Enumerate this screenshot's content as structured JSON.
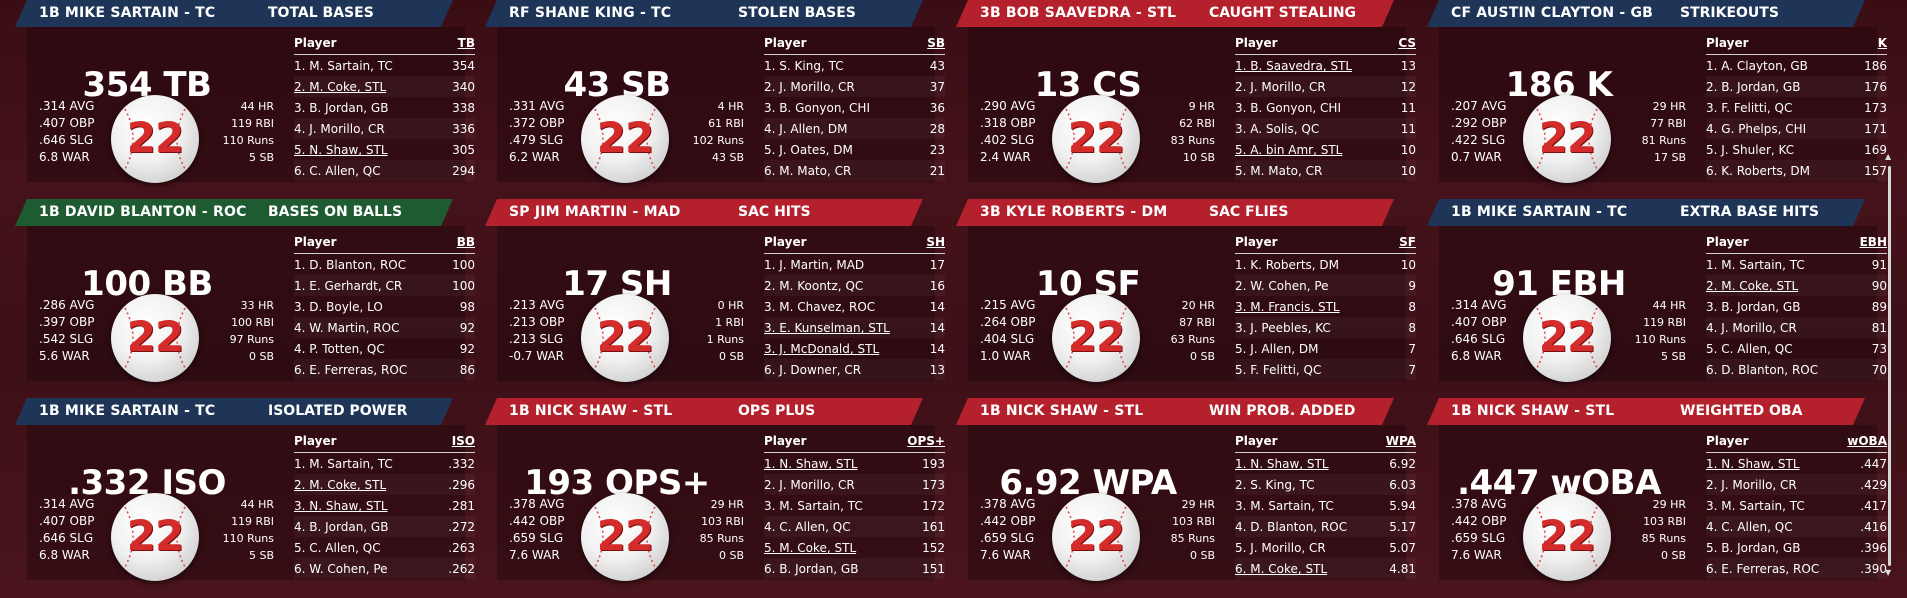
{
  "colors": {
    "navy": "#1e3557",
    "red": "#b4202b",
    "green": "#1e5b31"
  },
  "cards": [
    {
      "header": "1B MIKE SARTAIN - TC",
      "stat": "TOTAL BASES",
      "color": "navy",
      "big": "354 TB",
      "left": [
        ".314 AVG",
        ".407 OBP",
        ".646 SLG",
        "6.8 WAR"
      ],
      "right": [
        "44 HR",
        "119 RBI",
        "110 Runs",
        "5 SB"
      ],
      "number": "22",
      "col": "TB",
      "rows": [
        [
          "1. M. Sartain, TC",
          "354",
          false
        ],
        [
          "2. M. Coke, STL",
          "340",
          true
        ],
        [
          "3. B. Jordan, GB",
          "338",
          false
        ],
        [
          "4. J. Morillo, CR",
          "336",
          false
        ],
        [
          "5. N. Shaw, STL",
          "305",
          true
        ],
        [
          "6. C. Allen, QC",
          "294",
          false
        ]
      ]
    },
    {
      "header": "RF SHANE KING - TC",
      "stat": "STOLEN BASES",
      "color": "navy",
      "big": "43 SB",
      "left": [
        ".331 AVG",
        ".372 OBP",
        ".479 SLG",
        "6.2 WAR"
      ],
      "right": [
        "4 HR",
        "61 RBI",
        "102 Runs",
        "43 SB"
      ],
      "number": "22",
      "col": "SB",
      "rows": [
        [
          "1. S. King, TC",
          "43",
          false
        ],
        [
          "2. J. Morillo, CR",
          "37",
          false
        ],
        [
          "3. B. Gonyon, CHI",
          "36",
          false
        ],
        [
          "4. J. Allen, DM",
          "28",
          false
        ],
        [
          "5. J. Oates, DM",
          "23",
          false
        ],
        [
          "6. M. Mato, CR",
          "21",
          false
        ]
      ]
    },
    {
      "header": "3B BOB SAAVEDRA - STL",
      "stat": "CAUGHT STEALING",
      "color": "red",
      "big": "13 CS",
      "left": [
        ".290 AVG",
        ".318 OBP",
        ".402 SLG",
        "2.4 WAR"
      ],
      "right": [
        "9 HR",
        "62 RBI",
        "83 Runs",
        "10 SB"
      ],
      "number": "22",
      "col": "CS",
      "rows": [
        [
          "1. B. Saavedra, STL",
          "13",
          true
        ],
        [
          "2. J. Morillo, CR",
          "12",
          false
        ],
        [
          "3. B. Gonyon, CHI",
          "11",
          false
        ],
        [
          "3. A. Solis, QC",
          "11",
          false
        ],
        [
          "5. A. bin Amr, STL",
          "10",
          true
        ],
        [
          "5. M. Mato, CR",
          "10",
          false
        ]
      ]
    },
    {
      "header": "CF AUSTIN CLAYTON - GB",
      "stat": "STRIKEOUTS",
      "color": "navy",
      "big": "186 K",
      "left": [
        ".207 AVG",
        ".292 OBP",
        ".422 SLG",
        "0.7 WAR"
      ],
      "right": [
        "29 HR",
        "77 RBI",
        "81 Runs",
        "17 SB"
      ],
      "number": "22",
      "col": "K",
      "rows": [
        [
          "1. A. Clayton, GB",
          "186",
          false
        ],
        [
          "2. B. Jordan, GB",
          "176",
          false
        ],
        [
          "3. F. Felitti, QC",
          "173",
          false
        ],
        [
          "4. G. Phelps, CHI",
          "171",
          false
        ],
        [
          "5. J. Shuler, KC",
          "169",
          false
        ],
        [
          "6. K. Roberts, DM",
          "157",
          false
        ]
      ]
    },
    {
      "header": "1B DAVID BLANTON - ROC",
      "stat": "BASES ON BALLS",
      "color": "green",
      "big": "100 BB",
      "left": [
        ".286 AVG",
        ".397 OBP",
        ".542 SLG",
        "5.6 WAR"
      ],
      "right": [
        "33 HR",
        "100 RBI",
        "97 Runs",
        "0 SB"
      ],
      "number": "22",
      "col": "BB",
      "rows": [
        [
          "1. D. Blanton, ROC",
          "100",
          false
        ],
        [
          "1. E. Gerhardt, CR",
          "100",
          false
        ],
        [
          "3. D. Boyle, LO",
          "98",
          false
        ],
        [
          "4. W. Martin, ROC",
          "92",
          false
        ],
        [
          "4. P. Totten, QC",
          "92",
          false
        ],
        [
          "6. E. Ferreras, ROC",
          "86",
          false
        ]
      ]
    },
    {
      "header": "SP JIM MARTIN - MAD",
      "stat": "SAC HITS",
      "color": "red",
      "big": "17 SH",
      "left": [
        ".213 AVG",
        ".213 OBP",
        ".213 SLG",
        "-0.7 WAR"
      ],
      "right": [
        "0 HR",
        "1 RBI",
        "1 Runs",
        "0 SB"
      ],
      "number": "22",
      "col": "SH",
      "rows": [
        [
          "1. J. Martin, MAD",
          "17",
          false
        ],
        [
          "2. M. Koontz, QC",
          "16",
          false
        ],
        [
          "3. M. Chavez, ROC",
          "14",
          false
        ],
        [
          "3. E. Kunselman, STL",
          "14",
          true
        ],
        [
          "3. J. McDonald, STL",
          "14",
          true
        ],
        [
          "6. J. Downer, CR",
          "13",
          false
        ]
      ]
    },
    {
      "header": "3B KYLE ROBERTS - DM",
      "stat": "SAC FLIES",
      "color": "red",
      "big": "10 SF",
      "left": [
        ".215 AVG",
        ".264 OBP",
        ".404 SLG",
        "1.0 WAR"
      ],
      "right": [
        "20 HR",
        "87 RBI",
        "63 Runs",
        "0 SB"
      ],
      "number": "22",
      "col": "SF",
      "rows": [
        [
          "1. K. Roberts, DM",
          "10",
          false
        ],
        [
          "2. W. Cohen, Pe",
          "9",
          false
        ],
        [
          "3. M. Francis, STL",
          "8",
          true
        ],
        [
          "3. J. Peebles, KC",
          "8",
          false
        ],
        [
          "5. J. Allen, DM",
          "7",
          false
        ],
        [
          "5. F. Felitti, QC",
          "7",
          false
        ]
      ]
    },
    {
      "header": "1B MIKE SARTAIN - TC",
      "stat": "EXTRA BASE HITS",
      "color": "navy",
      "big": "91 EBH",
      "left": [
        ".314 AVG",
        ".407 OBP",
        ".646 SLG",
        "6.8 WAR"
      ],
      "right": [
        "44 HR",
        "119 RBI",
        "110 Runs",
        "5 SB"
      ],
      "number": "22",
      "col": "EBH",
      "rows": [
        [
          "1. M. Sartain, TC",
          "91",
          false
        ],
        [
          "2. M. Coke, STL",
          "90",
          true
        ],
        [
          "3. B. Jordan, GB",
          "89",
          false
        ],
        [
          "4. J. Morillo, CR",
          "81",
          false
        ],
        [
          "5. C. Allen, QC",
          "73",
          false
        ],
        [
          "6. D. Blanton, ROC",
          "70",
          false
        ]
      ]
    },
    {
      "header": "1B MIKE SARTAIN - TC",
      "stat": "ISOLATED POWER",
      "color": "navy",
      "big": ".332 ISO",
      "left": [
        ".314 AVG",
        ".407 OBP",
        ".646 SLG",
        "6.8 WAR"
      ],
      "right": [
        "44 HR",
        "119 RBI",
        "110 Runs",
        "5 SB"
      ],
      "number": "22",
      "col": "ISO",
      "rows": [
        [
          "1. M. Sartain, TC",
          ".332",
          false
        ],
        [
          "2. M. Coke, STL",
          ".296",
          true
        ],
        [
          "3. N. Shaw, STL",
          ".281",
          true
        ],
        [
          "4. B. Jordan, GB",
          ".272",
          false
        ],
        [
          "5. C. Allen, QC",
          ".263",
          false
        ],
        [
          "6. W. Cohen, Pe",
          ".262",
          false
        ]
      ]
    },
    {
      "header": "1B NICK SHAW - STL",
      "stat": "OPS PLUS",
      "color": "red",
      "big": "193 OPS+",
      "left": [
        ".378 AVG",
        ".442 OBP",
        ".659 SLG",
        "7.6 WAR"
      ],
      "right": [
        "29 HR",
        "103 RBI",
        "85 Runs",
        "0 SB"
      ],
      "number": "22",
      "col": "OPS+",
      "rows": [
        [
          "1. N. Shaw, STL",
          "193",
          true
        ],
        [
          "2. J. Morillo, CR",
          "173",
          false
        ],
        [
          "3. M. Sartain, TC",
          "172",
          false
        ],
        [
          "4. C. Allen, QC",
          "161",
          false
        ],
        [
          "5. M. Coke, STL",
          "152",
          true
        ],
        [
          "6. B. Jordan, GB",
          "151",
          false
        ]
      ]
    },
    {
      "header": "1B NICK SHAW - STL",
      "stat": "WIN PROB. ADDED",
      "color": "red",
      "big": "6.92 WPA",
      "left": [
        ".378 AVG",
        ".442 OBP",
        ".659 SLG",
        "7.6 WAR"
      ],
      "right": [
        "29 HR",
        "103 RBI",
        "85 Runs",
        "0 SB"
      ],
      "number": "22",
      "col": "WPA",
      "rows": [
        [
          "1. N. Shaw, STL",
          "6.92",
          true
        ],
        [
          "2. S. King, TC",
          "6.03",
          false
        ],
        [
          "3. M. Sartain, TC",
          "5.94",
          false
        ],
        [
          "4. D. Blanton, ROC",
          "5.17",
          false
        ],
        [
          "5. J. Morillo, CR",
          "5.07",
          false
        ],
        [
          "6. M. Coke, STL",
          "4.81",
          true
        ]
      ]
    },
    {
      "header": "1B NICK SHAW - STL",
      "stat": "WEIGHTED OBA",
      "color": "red",
      "big": ".447 wOBA",
      "left": [
        ".378 AVG",
        ".442 OBP",
        ".659 SLG",
        "7.6 WAR"
      ],
      "right": [
        "29 HR",
        "103 RBI",
        "85 Runs",
        "0 SB"
      ],
      "number": "22",
      "col": "wOBA",
      "rows": [
        [
          "1. N. Shaw, STL",
          ".447",
          true
        ],
        [
          "2. J. Morillo, CR",
          ".429",
          false
        ],
        [
          "3. M. Sartain, TC",
          ".417",
          false
        ],
        [
          "4. C. Allen, QC",
          ".416",
          false
        ],
        [
          "5. B. Jordan, GB",
          ".396",
          false
        ],
        [
          "6. E. Ferreras, ROC",
          ".390",
          false
        ]
      ]
    }
  ]
}
